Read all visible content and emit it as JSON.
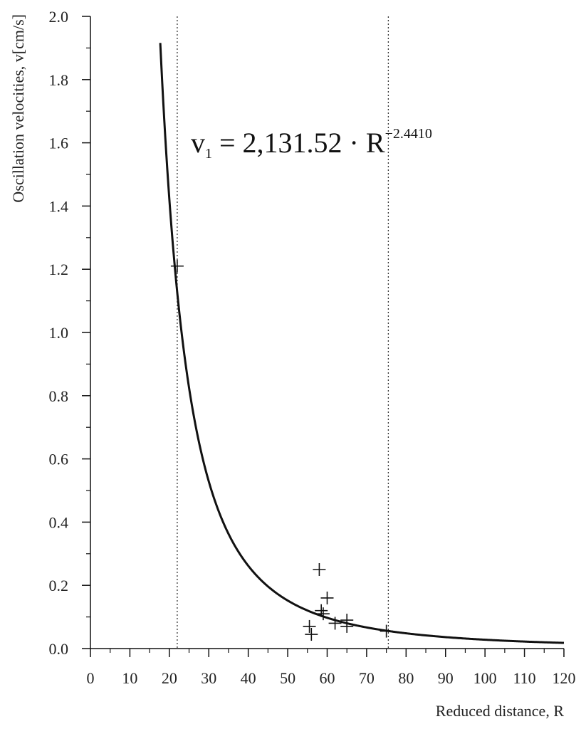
{
  "chart_data": {
    "type": "scatter",
    "xlabel": "Reduced distance, R",
    "ylabel": "Oscillation velocities, v[cm/s]",
    "xlim": [
      0,
      120
    ],
    "ylim": [
      0,
      2.0
    ],
    "x_ticks": [
      0,
      10,
      20,
      30,
      40,
      50,
      60,
      70,
      80,
      90,
      100,
      110,
      120
    ],
    "x_tick_labels": [
      "0",
      "10",
      "20",
      "30",
      "40",
      "50",
      "60",
      "70",
      "80",
      "90",
      "100",
      "110",
      "120"
    ],
    "y_ticks": [
      0,
      0.2,
      0.4,
      0.6,
      0.8,
      1.0,
      1.2,
      1.4,
      1.6,
      1.8,
      2.0
    ],
    "y_tick_labels": [
      "0.0",
      "0.2",
      "0.4",
      "0.6",
      "0.8",
      "1.0",
      "1.2",
      "1.4",
      "1.6",
      "1.8",
      "2.0"
    ],
    "grid": false,
    "reference_lines_x": [
      22,
      75.5
    ],
    "points": [
      {
        "x": 22,
        "y": 1.21
      },
      {
        "x": 55.5,
        "y": 0.07
      },
      {
        "x": 56,
        "y": 0.045
      },
      {
        "x": 58,
        "y": 0.25
      },
      {
        "x": 58.5,
        "y": 0.12
      },
      {
        "x": 59,
        "y": 0.11
      },
      {
        "x": 60,
        "y": 0.16
      },
      {
        "x": 62,
        "y": 0.08
      },
      {
        "x": 65,
        "y": 0.07
      },
      {
        "x": 65,
        "y": 0.09
      },
      {
        "x": 75,
        "y": 0.055
      }
    ],
    "fit": {
      "coefficient": 2131.52,
      "exponent": -2.441,
      "x_from": 17.7,
      "x_to": 120
    },
    "annotation": {
      "main": "v",
      "sub": "1",
      "middle": " = 2,131.52 · R",
      "sup": "−2.4410"
    }
  }
}
